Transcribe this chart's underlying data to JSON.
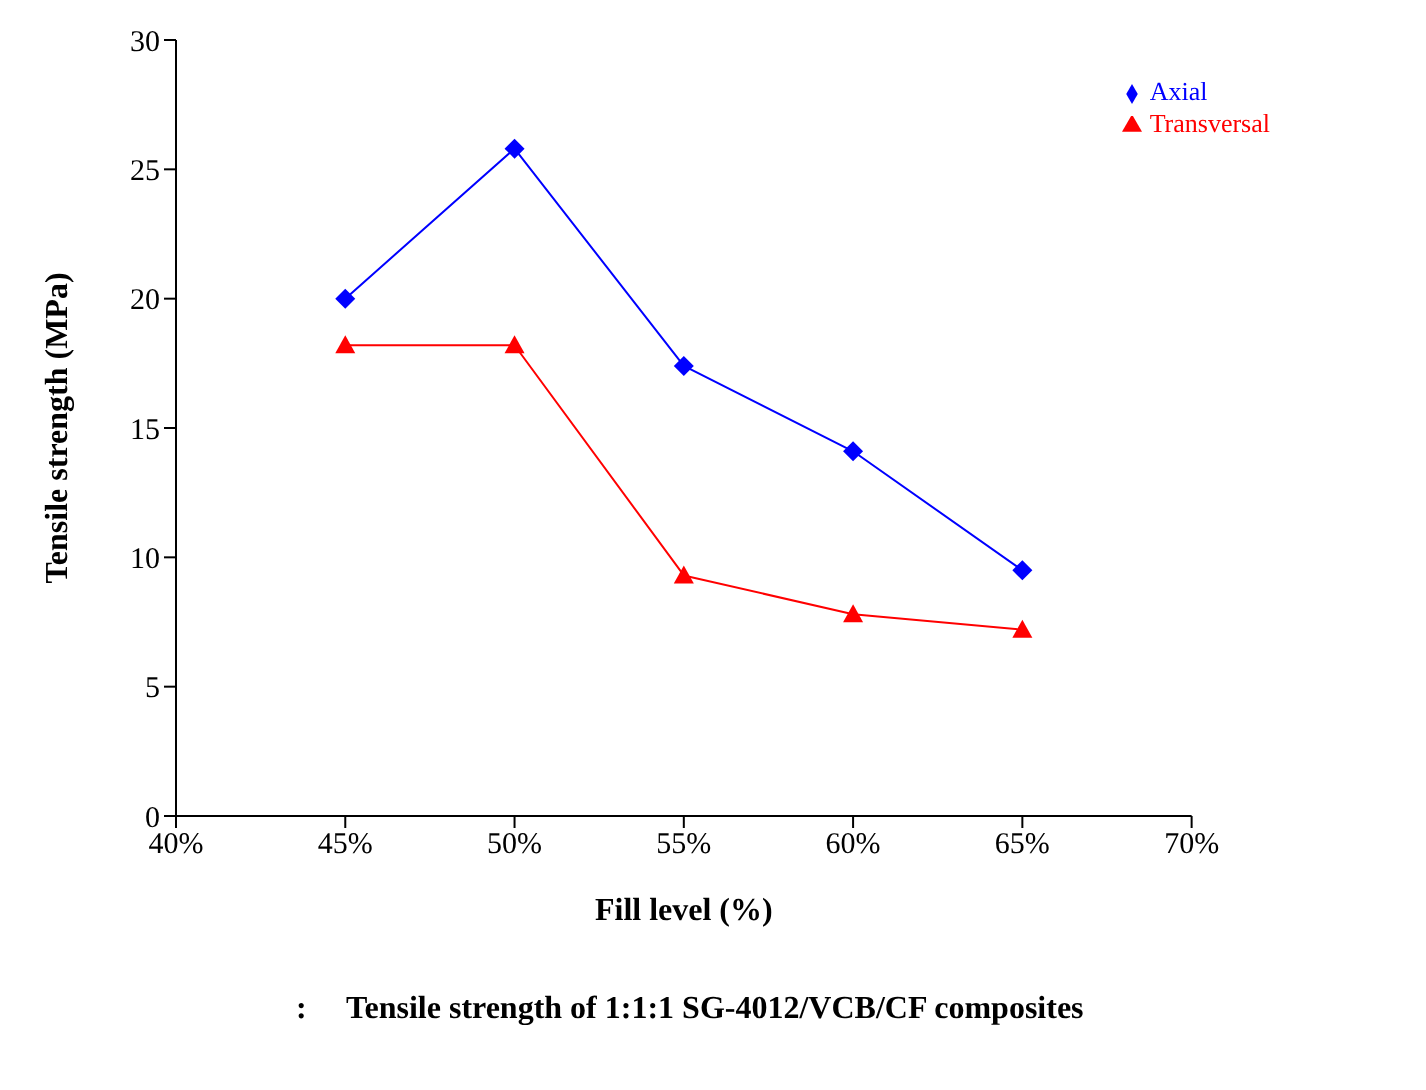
{
  "chart_data": {
    "type": "line",
    "xlabel": "Fill level (%)",
    "ylabel": "Tensile strength (MPa)",
    "x": [
      45,
      50,
      55,
      60,
      65
    ],
    "series": [
      {
        "name": "Axial",
        "color": "#0000ff",
        "marker": "diamond",
        "values": [
          20,
          25.8,
          17.4,
          14.1,
          9.5
        ]
      },
      {
        "name": "Transversal",
        "color": "#ff0000",
        "marker": "triangle",
        "values": [
          18.2,
          18.2,
          9.3,
          7.8,
          7.2
        ]
      }
    ],
    "xlim": [
      40,
      70
    ],
    "xticks": [
      {
        "value": 40,
        "label": "40%"
      },
      {
        "value": 45,
        "label": "45%"
      },
      {
        "value": 50,
        "label": "50%"
      },
      {
        "value": 55,
        "label": "55%"
      },
      {
        "value": 60,
        "label": "60%"
      },
      {
        "value": 65,
        "label": "65%"
      },
      {
        "value": 70,
        "label": "70%"
      }
    ],
    "ylim": [
      0,
      30
    ],
    "yticks": [
      0,
      5,
      10,
      15,
      20,
      25,
      30
    ],
    "grid": false,
    "legend": "top right",
    "annotations": [
      ":     Tensile strength of 1:1:1 SG-4012/VCB/CF composites"
    ]
  }
}
